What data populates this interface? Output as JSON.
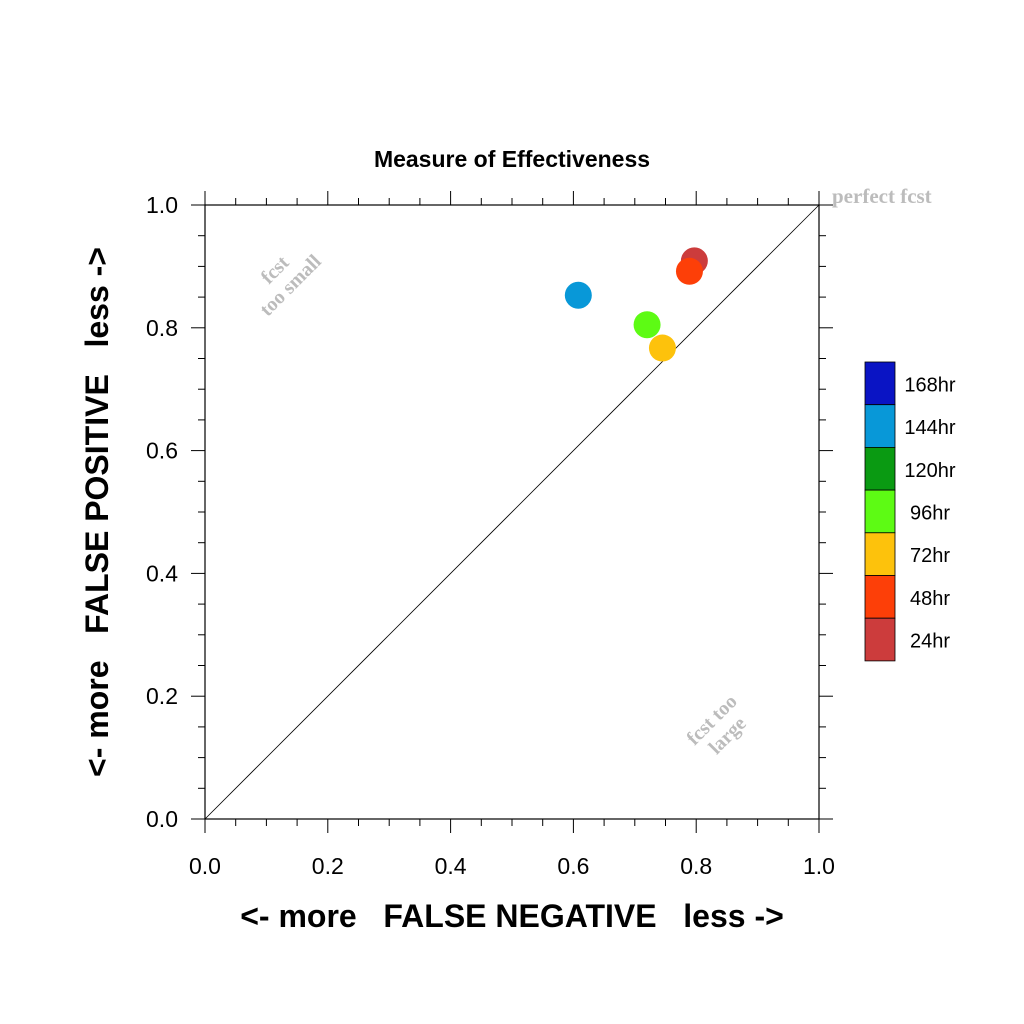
{
  "chart_data": {
    "type": "scatter",
    "title": "Measure of Effectiveness",
    "xlabel": "<- more   FALSE NEGATIVE   less ->",
    "ylabel": "<- more   FALSE POSITIVE   less ->",
    "xlim": [
      0.0,
      1.0
    ],
    "ylim": [
      0.0,
      1.0
    ],
    "xticks": [
      "0.0",
      "0.2",
      "0.4",
      "0.6",
      "0.8",
      "1.0"
    ],
    "yticks": [
      "0.0",
      "0.2",
      "0.4",
      "0.6",
      "0.8",
      "1.0"
    ],
    "grid": false,
    "legend_position": "right",
    "annotations": {
      "perfect": "perfect fcst",
      "too_small": [
        "fcst",
        "too small"
      ],
      "too_large": [
        "fcst too",
        "large"
      ]
    },
    "legend": [
      {
        "name": "168hr",
        "color": "#0a14c4"
      },
      {
        "name": "144hr",
        "color": "#0898d8"
      },
      {
        "name": "120hr",
        "color": "#0a9a12"
      },
      {
        "name": "96hr",
        "color": "#5dfb14"
      },
      {
        "name": "72hr",
        "color": "#fdc20c"
      },
      {
        "name": "48hr",
        "color": "#fd3f08"
      },
      {
        "name": "24hr",
        "color": "#cc3c3c"
      }
    ],
    "series": [
      {
        "name": "144hr",
        "x": 0.608,
        "y": 0.853,
        "color": "#0898d8"
      },
      {
        "name": "96hr",
        "x": 0.72,
        "y": 0.805,
        "color": "#5dfb14"
      },
      {
        "name": "72hr",
        "x": 0.745,
        "y": 0.767,
        "color": "#fdc20c"
      },
      {
        "name": "24hr",
        "x": 0.797,
        "y": 0.909,
        "color": "#cc3c3c"
      },
      {
        "name": "48hr",
        "x": 0.789,
        "y": 0.892,
        "color": "#fd3f08"
      }
    ]
  }
}
